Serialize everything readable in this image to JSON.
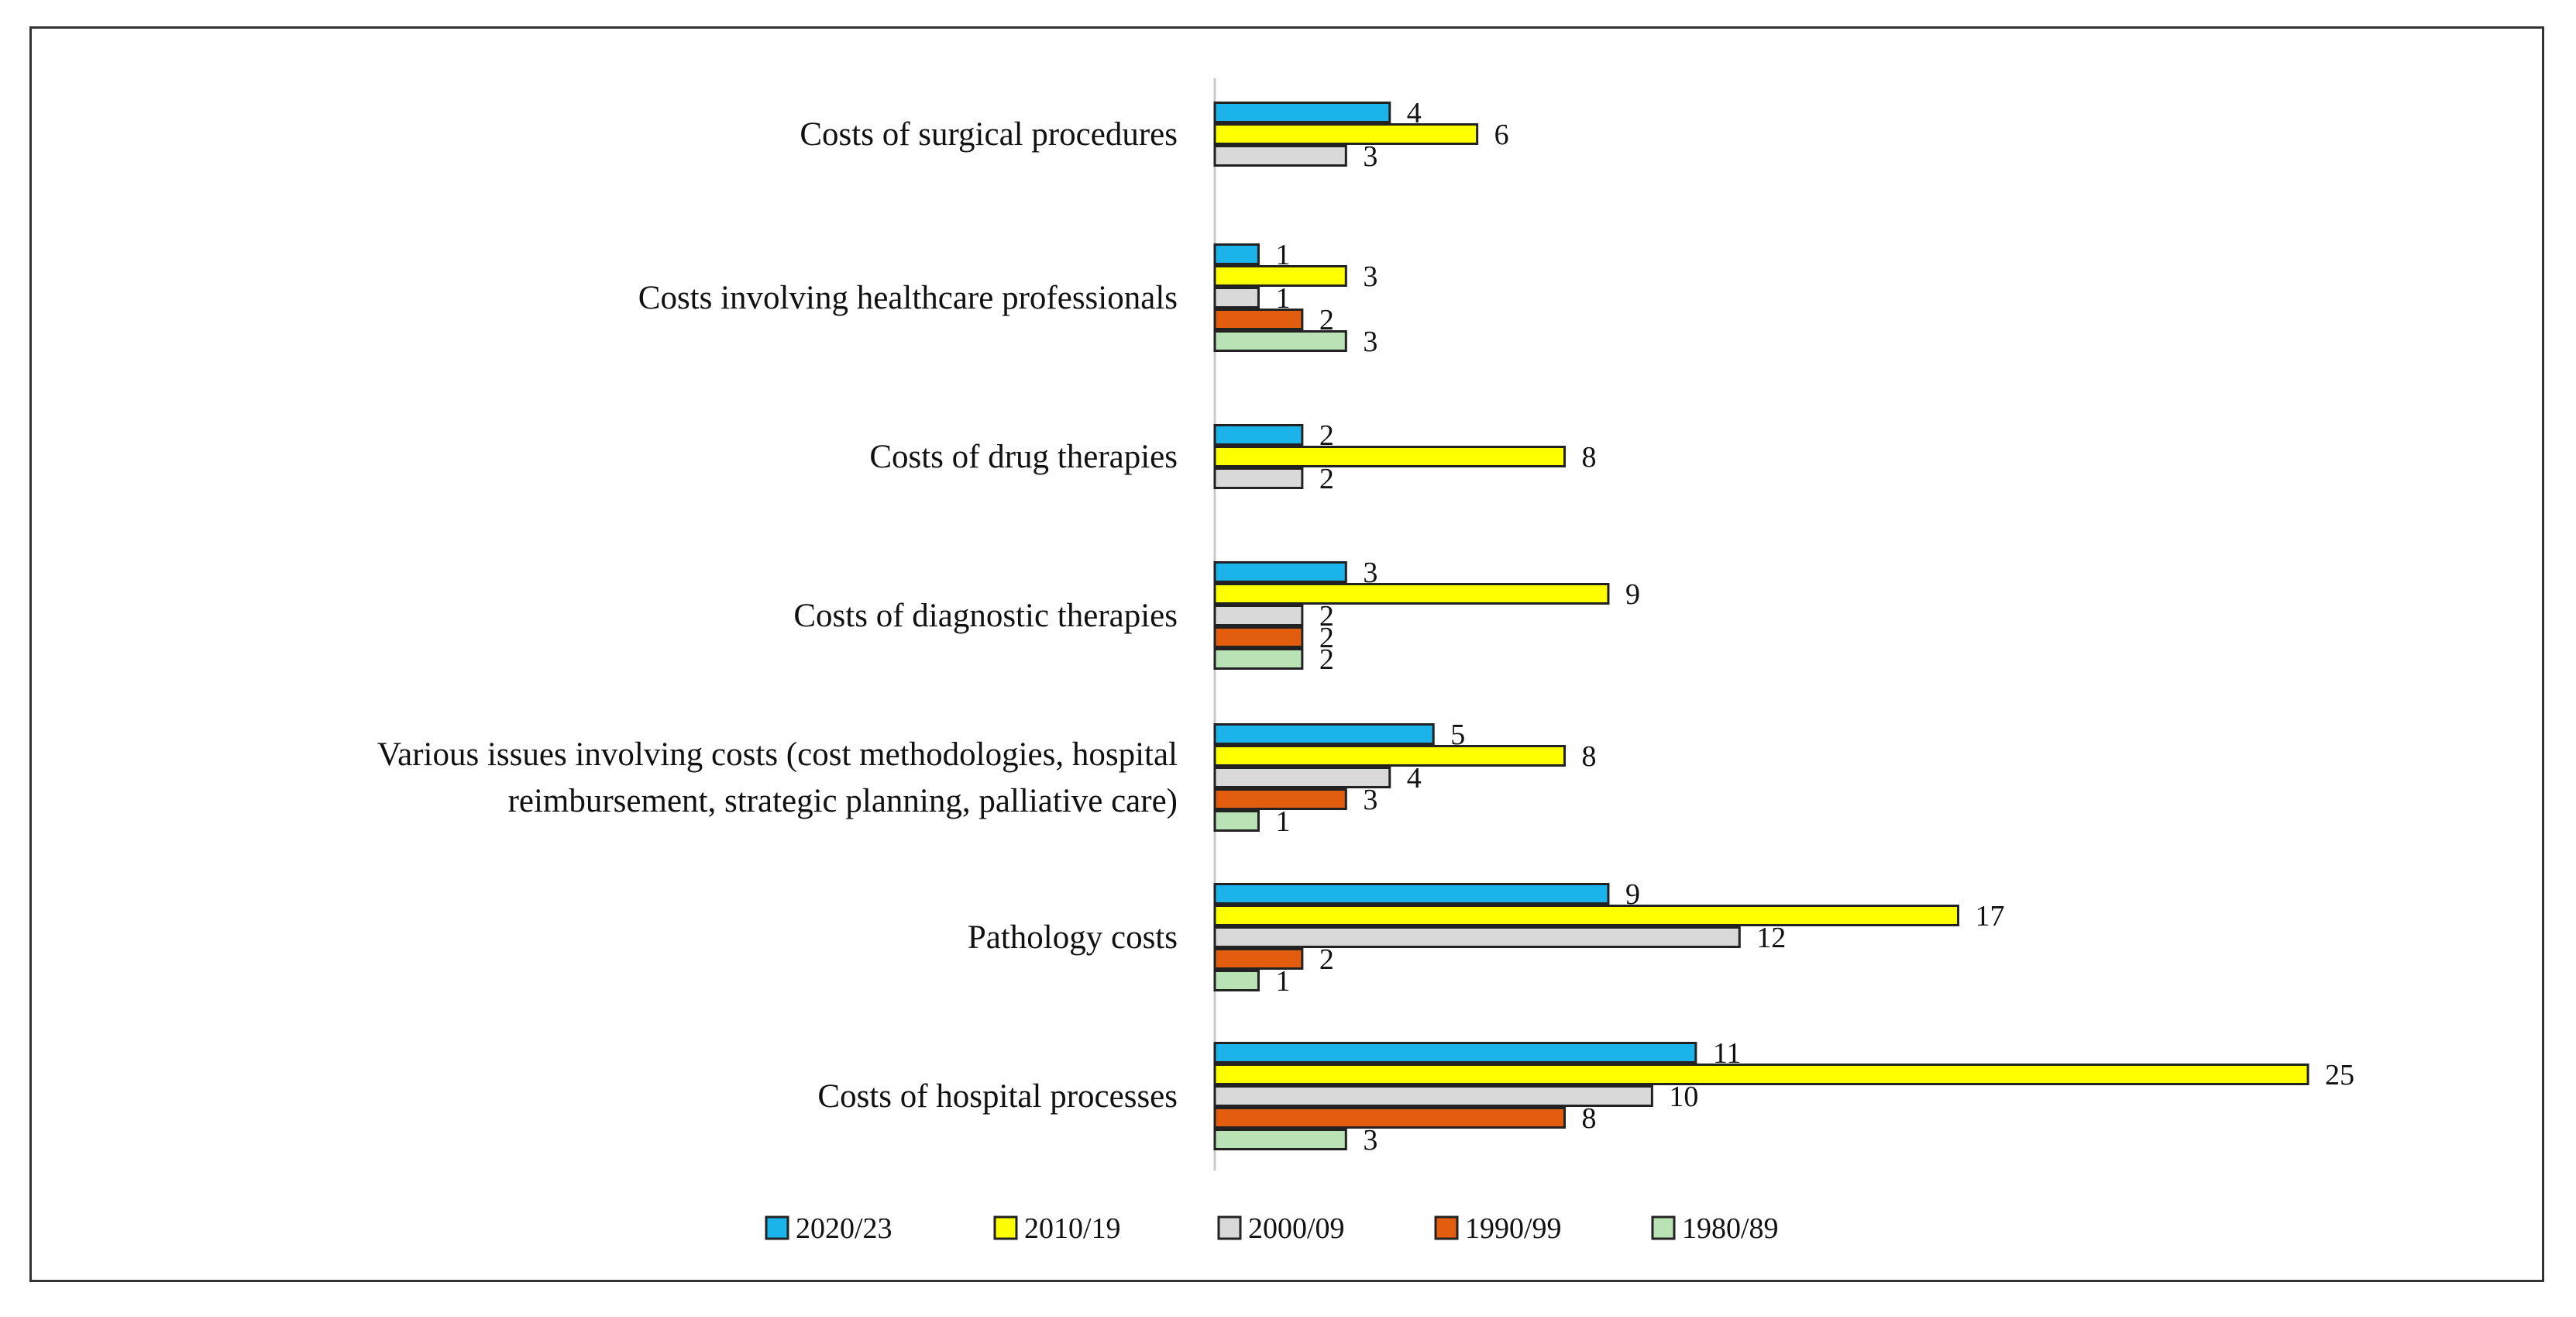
{
  "chart_data": {
    "type": "bar",
    "orientation": "horizontal",
    "title": "",
    "xlabel": "",
    "ylabel": "",
    "xlim": [
      0,
      25
    ],
    "grid": false,
    "legend_position": "bottom",
    "categories": [
      [
        "Costs of surgical procedures"
      ],
      [
        "Costs involving healthcare professionals"
      ],
      [
        "Costs of drug therapies"
      ],
      [
        "Costs of diagnostic therapies"
      ],
      [
        "Various issues involving costs (cost methodologies, hospital",
        "reimbursement, strategic planning, palliative care)"
      ],
      [
        "Pathology costs"
      ],
      [
        "Costs of hospital processes"
      ]
    ],
    "series": [
      {
        "name": "2020/23",
        "color": "#1ab3ea",
        "values": [
          4,
          1,
          2,
          3,
          5,
          9,
          11
        ]
      },
      {
        "name": "2010/19",
        "color": "#ffff00",
        "values": [
          6,
          3,
          8,
          9,
          8,
          17,
          25
        ]
      },
      {
        "name": "2000/09",
        "color": "#d9d9d9",
        "values": [
          3,
          1,
          2,
          2,
          4,
          12,
          10
        ]
      },
      {
        "name": "1990/99",
        "color": "#e35d0f",
        "values": [
          null,
          2,
          null,
          2,
          3,
          2,
          8
        ]
      },
      {
        "name": "1980/89",
        "color": "#b9e3b4",
        "values": [
          null,
          3,
          null,
          2,
          1,
          1,
          3
        ]
      }
    ]
  }
}
